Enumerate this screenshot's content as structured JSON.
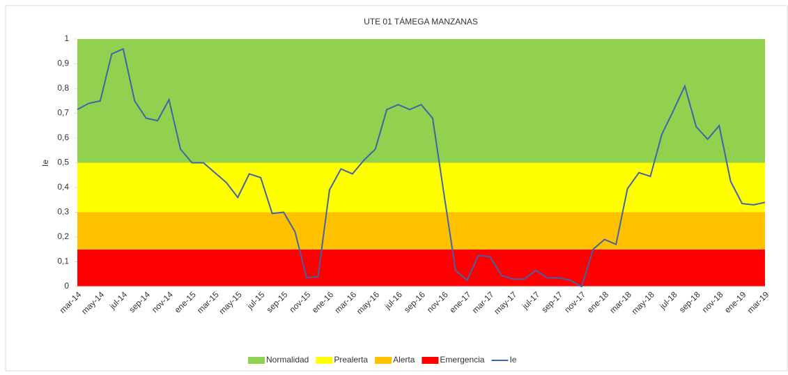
{
  "chart_data": {
    "type": "line",
    "title": "UTE 01 TÁMEGA MANZANAS",
    "y_label": "Ie",
    "categories": [
      "mar-14",
      null,
      "may-14",
      null,
      "jul-14",
      null,
      "sep-14",
      null,
      "nov-14",
      null,
      "ene-15",
      null,
      "mar-15",
      null,
      "may-15",
      null,
      "jul-15",
      null,
      "sep-15",
      null,
      "nov-15",
      null,
      "ene-16",
      null,
      "mar-16",
      null,
      "may-16",
      null,
      "jul-16",
      null,
      "sep-16",
      null,
      "nov-16",
      null,
      "ene-17",
      null,
      "mar-17",
      null,
      "may-17",
      null,
      "jul-17",
      null,
      "sep-17",
      null,
      "nov-17",
      null,
      "ene-18",
      null,
      "mar-18",
      null,
      "may-18",
      null,
      "jul-18",
      null,
      "sep-18",
      null,
      "nov-18",
      null,
      "ene-19",
      null,
      "mar-19"
    ],
    "bands": [
      {
        "name": "Emergencia",
        "color": "#ff0000",
        "value": 0.15
      },
      {
        "name": "Alerta",
        "color": "#ffc000",
        "value": 0.15
      },
      {
        "name": "Prealerta",
        "color": "#ffff00",
        "value": 0.2
      },
      {
        "name": "Normalidad",
        "color": "#92d050",
        "value": 0.5
      }
    ],
    "series": [
      {
        "name": "Ie",
        "color": "#4063a9",
        "values": [
          0.715,
          0.74,
          0.75,
          0.94,
          0.96,
          0.75,
          0.68,
          0.67,
          0.755,
          0.555,
          0.5,
          0.5,
          0.46,
          0.42,
          0.36,
          0.455,
          0.44,
          0.295,
          0.3,
          0.22,
          0.035,
          0.04,
          0.39,
          0.475,
          0.455,
          0.51,
          0.555,
          0.715,
          0.735,
          0.715,
          0.735,
          0.68,
          0.37,
          0.065,
          0.025,
          0.125,
          0.12,
          0.045,
          0.03,
          0.03,
          0.065,
          0.035,
          0.035,
          0.025,
          0.0,
          0.15,
          0.19,
          0.17,
          0.395,
          0.46,
          0.445,
          0.615,
          0.71,
          0.81,
          0.645,
          0.595,
          0.65,
          0.425,
          0.335,
          0.33,
          0.34
        ]
      }
    ],
    "legend_order": [
      "Normalidad",
      "Prealerta",
      "Alerta",
      "Emergencia",
      "Ie"
    ],
    "ylim": [
      0,
      1
    ],
    "yticks": [
      0,
      {
        "value": 0.1,
        "label": "0,1"
      },
      {
        "value": 0.2,
        "label": "0,2"
      },
      {
        "value": 0.3,
        "label": "0,3"
      },
      {
        "value": 0.4,
        "label": "0,4"
      },
      {
        "value": 0.5,
        "label": "0,5"
      },
      {
        "value": 0.6,
        "label": "0,6"
      },
      {
        "value": 0.7,
        "label": "0,7"
      },
      {
        "value": 0.8,
        "label": "0,8"
      },
      {
        "value": 0.9,
        "label": "0,9"
      },
      1
    ]
  }
}
